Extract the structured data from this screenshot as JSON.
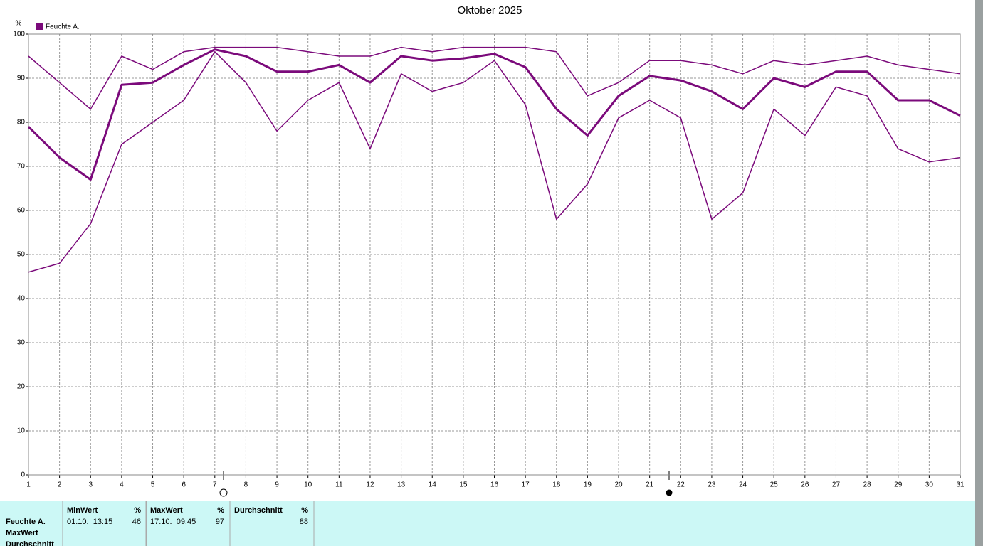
{
  "chart_data": {
    "type": "line",
    "title": "Oktober 2025",
    "ylabel": "%",
    "x": [
      1,
      2,
      3,
      4,
      5,
      6,
      7,
      8,
      9,
      10,
      11,
      12,
      13,
      14,
      15,
      16,
      17,
      18,
      19,
      20,
      21,
      22,
      23,
      24,
      25,
      26,
      27,
      28,
      29,
      30,
      31
    ],
    "xlim": [
      1,
      31
    ],
    "xticks": [
      1,
      2,
      3,
      4,
      5,
      6,
      7,
      8,
      9,
      10,
      11,
      12,
      13,
      14,
      15,
      16,
      17,
      18,
      19,
      20,
      21,
      22,
      23,
      24,
      25,
      26,
      27,
      28,
      29,
      30,
      31
    ],
    "ylim": [
      0,
      100
    ],
    "yticks": [
      0,
      10,
      20,
      30,
      40,
      50,
      60,
      70,
      80,
      90,
      100
    ],
    "grid": true,
    "legend": "top-left",
    "series": [
      {
        "name": "Feuchte A.",
        "color": "#7b0a7b",
        "width": 3,
        "values": [
          79,
          72,
          67,
          88.5,
          89,
          93,
          96.5,
          95,
          91.5,
          91.5,
          93,
          89,
          95,
          94,
          94.5,
          95.5,
          92.5,
          83,
          77,
          86,
          90.5,
          89.5,
          87,
          83,
          90,
          88,
          91.5,
          91.5,
          85,
          85,
          81.5
        ]
      },
      {
        "color": "#7b0a7b",
        "width": 1.5,
        "values": [
          95,
          89,
          83,
          95,
          92,
          96,
          97,
          97,
          97,
          96,
          95,
          95,
          97,
          96,
          97,
          97,
          97,
          96,
          86,
          89,
          94,
          94,
          93,
          91,
          94,
          93,
          94,
          95,
          93,
          92,
          91
        ]
      },
      {
        "color": "#7b0a7b",
        "width": 1.5,
        "values": [
          46,
          48,
          57,
          75,
          80,
          85,
          96,
          89,
          78,
          85,
          89,
          74,
          91,
          87,
          89,
          94,
          84,
          58,
          66,
          81,
          85,
          81,
          58,
          64,
          83,
          77,
          88,
          86,
          74,
          71,
          72
        ]
      }
    ]
  },
  "table": {
    "row_labels": [
      "Feuchte A.",
      "MaxWert",
      "Durchschnitt"
    ],
    "columns": [
      {
        "name": "MinWert",
        "unit": "%",
        "time": "01.10.  13:15",
        "value": "46"
      },
      {
        "name": "MaxWert",
        "unit": "%",
        "time": "17.10.  09:45",
        "value": "97"
      },
      {
        "name": "Durchschnitt",
        "unit": "%",
        "value": "88"
      }
    ]
  }
}
